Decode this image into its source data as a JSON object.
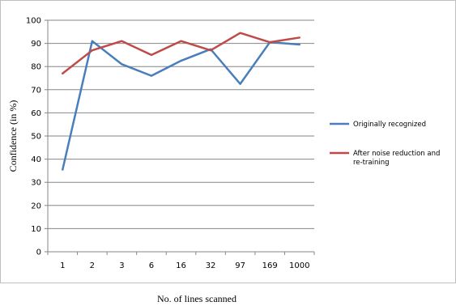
{
  "chart_data": {
    "type": "line",
    "title": "",
    "xlabel": "No. of lines scanned",
    "ylabel": "Confidence (in %)",
    "categories": [
      "1",
      "2",
      "3",
      "6",
      "16",
      "32",
      "97",
      "169",
      "1000"
    ],
    "ylim": [
      0,
      100
    ],
    "yticks": [
      0,
      10,
      20,
      30,
      40,
      50,
      60,
      70,
      80,
      90,
      100
    ],
    "grid": "horizontal",
    "legend_position": "right",
    "series": [
      {
        "name": "Originally recognized",
        "color": "#4A7EBB",
        "values": [
          35.5,
          91,
          81,
          76,
          82.5,
          87.5,
          72.5,
          90.5,
          89.5
        ]
      },
      {
        "name": "After noise reduction and re-training",
        "color": "#BE4B48",
        "values": [
          77,
          87,
          91,
          85,
          91,
          87,
          94.5,
          90.5,
          92.5
        ]
      }
    ]
  }
}
